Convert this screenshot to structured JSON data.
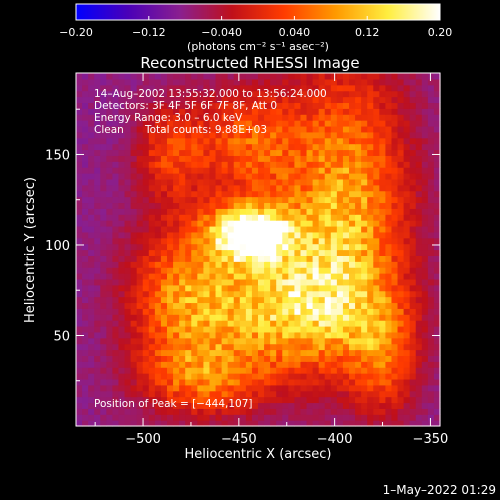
{
  "chart_data": {
    "type": "heatmap",
    "title": "Reconstructed RHESSI Image",
    "colorbar": {
      "ticks": [
        "−0.20",
        "−0.12",
        "−0.040",
        "0.040",
        "0.12",
        "0.20"
      ],
      "range": [
        -0.2,
        0.2
      ],
      "unit_label": "(photons cm⁻² s⁻¹ asec⁻²)",
      "colormap": [
        "#0000ff",
        "#4a00b8",
        "#8a1f8f",
        "#c0101a",
        "#ff3c00",
        "#ff9a00",
        "#ffee40",
        "#ffffff"
      ]
    },
    "annotations": {
      "time": "14–Aug–2002 13:55:32.000 to 13:56:24.000",
      "detectors": "Detectors: 3F 4F 5F 6F 7F 8F, Att 0",
      "energy": "Energy Range: 3.0 – 6.0 keV",
      "clean_label": "Clean",
      "counts": "Total counts: 9.88E+03",
      "peak": "Position of Peak = [−444,107]"
    },
    "xlabel": "Heliocentric X (arcsec)",
    "ylabel": "Heliocentric Y (arcsec)",
    "xlim": [
      -535,
      -345
    ],
    "ylim": [
      0,
      195
    ],
    "xticks": [
      -500,
      -450,
      -400,
      -350
    ],
    "xtick_labels": [
      "−500",
      "−450",
      "−400",
      "−350"
    ],
    "yticks": [
      50,
      100,
      150
    ],
    "ytick_labels": [
      "50",
      "100",
      "150"
    ],
    "peak": {
      "x": -444,
      "y": 107,
      "value": 0.2
    },
    "background_value": -0.08,
    "sources": [
      {
        "x": -444,
        "y": 107,
        "amp": 0.27,
        "sx": 14,
        "sy": 10
      },
      {
        "x": -432,
        "y": 100,
        "amp": 0.08,
        "sx": 30,
        "sy": 25
      },
      {
        "x": -392,
        "y": 123,
        "amp": 0.16,
        "sx": 22,
        "sy": 55
      },
      {
        "x": -424,
        "y": 62,
        "amp": 0.17,
        "sx": 32,
        "sy": 22
      },
      {
        "x": -480,
        "y": 70,
        "amp": 0.13,
        "sx": 20,
        "sy": 30
      },
      {
        "x": -445,
        "y": 158,
        "amp": 0.12,
        "sx": 22,
        "sy": 20
      },
      {
        "x": -465,
        "y": 26,
        "amp": 0.11,
        "sx": 24,
        "sy": 14
      },
      {
        "x": -374,
        "y": 38,
        "amp": 0.1,
        "sx": 12,
        "sy": 22
      },
      {
        "x": -487,
        "y": 152,
        "amp": 0.09,
        "sx": 12,
        "sy": 18
      }
    ]
  },
  "footer": {
    "date": "1–May–2022 01:29"
  }
}
